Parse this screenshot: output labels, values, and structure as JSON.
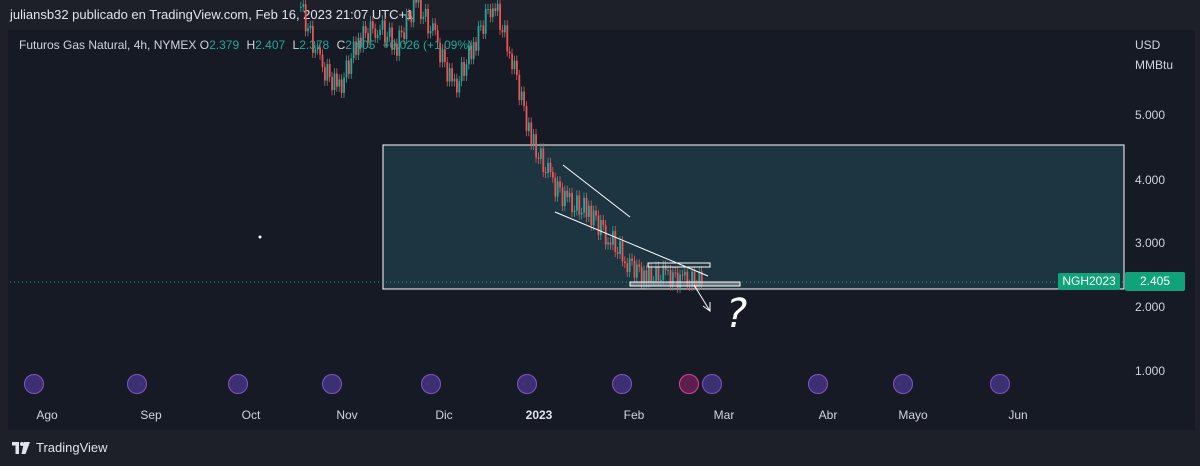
{
  "header": {
    "publisher_line": "juliansb32 publicado en TradingView.com, Feb 16, 2023 21:07 UTC+1"
  },
  "legend": {
    "symbol": "Futuros Gas Natural, 4h, NYMEX",
    "open_label": "O",
    "open": "2.379",
    "high_label": "H",
    "high": "2.407",
    "low_label": "L",
    "low": "2.378",
    "close_label": "C",
    "close": "2.405",
    "change": "+0.026 (+1.09%)"
  },
  "price_axis": {
    "currency": "USD",
    "unit": "MMBtu",
    "ticks": [
      "5.000",
      "4.000",
      "3.000",
      "2.000",
      "1.000"
    ]
  },
  "time_axis": {
    "ticks": [
      "Ago",
      "Sep",
      "Oct",
      "Nov",
      "Dic",
      "2023",
      "Feb",
      "Mar",
      "Abr",
      "Mayo",
      "Jun"
    ]
  },
  "last_price": {
    "symbol": "NGH2023",
    "value": "2.405"
  },
  "annotation": {
    "question": "?"
  },
  "footer": {
    "brand": "TradingView"
  },
  "colors": {
    "up": "#26a69a",
    "down": "#ef5350",
    "box": "#ffffff",
    "box_fill": "#1f3b47",
    "accent": "#10a37a"
  },
  "chart_data": {
    "type": "candlestick",
    "symbol": "NGH2023",
    "timeframe": "4h",
    "x_axis": [
      "Ago",
      "Sep",
      "Oct",
      "Nov",
      "Dic",
      "2023",
      "Feb",
      "Mar",
      "Abr",
      "Mayo",
      "Jun"
    ],
    "ylim": [
      0.9,
      5.9
    ],
    "y_ticks": [
      5.0,
      4.0,
      3.0,
      2.0,
      1.0
    ],
    "approx_close_path": [
      {
        "x": "Oct 20",
        "y": 6.7
      },
      {
        "x": "Oct 25",
        "y": 5.8
      },
      {
        "x": "Oct 28",
        "y": 5.4
      },
      {
        "x": "Nov 3",
        "y": 6.2
      },
      {
        "x": "Nov 10",
        "y": 6.4
      },
      {
        "x": "Nov 17",
        "y": 6.1
      },
      {
        "x": "Nov 24",
        "y": 6.8
      },
      {
        "x": "Dic 2",
        "y": 6.2
      },
      {
        "x": "Dic 9",
        "y": 5.4
      },
      {
        "x": "Dic 16",
        "y": 6.1
      },
      {
        "x": "Dic 20",
        "y": 6.8
      },
      {
        "x": "Dic 27",
        "y": 5.9
      },
      {
        "x": "2023 Ene 2",
        "y": 4.6
      },
      {
        "x": "Ene 6",
        "y": 4.0
      },
      {
        "x": "Ene 12",
        "y": 3.6
      },
      {
        "x": "Ene 18",
        "y": 3.5
      },
      {
        "x": "Ene 24",
        "y": 3.1
      },
      {
        "x": "Ene 30",
        "y": 2.7
      },
      {
        "x": "Feb 3",
        "y": 2.45
      },
      {
        "x": "Feb 8",
        "y": 2.5
      },
      {
        "x": "Feb 13",
        "y": 2.4
      },
      {
        "x": "Feb 16",
        "y": 2.405
      }
    ],
    "last": 2.405,
    "drawings": {
      "rectangle": {
        "price_top": 4.55,
        "price_bottom": 2.3
      },
      "resistance_band": {
        "price": 2.62
      },
      "support_band": {
        "price": 2.38
      }
    }
  }
}
